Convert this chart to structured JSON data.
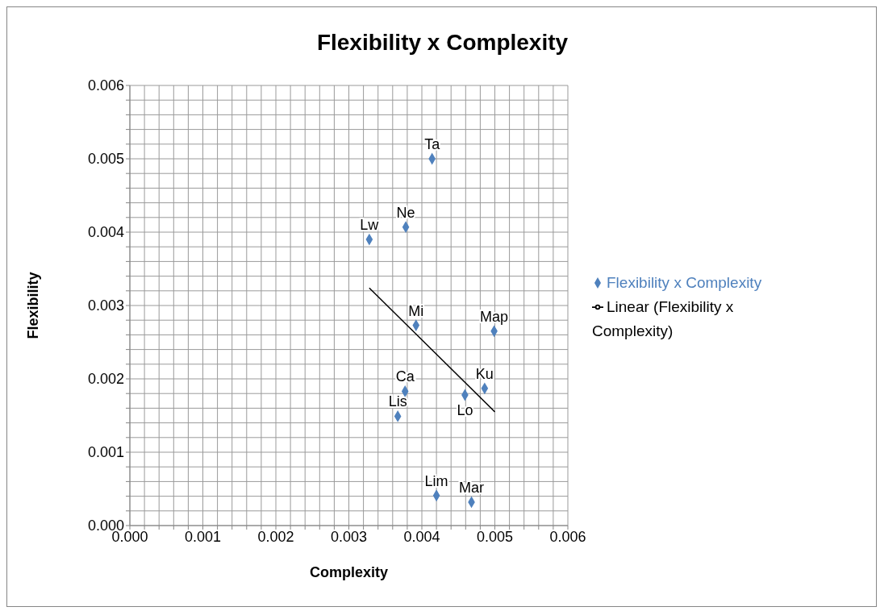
{
  "chart_data": {
    "type": "scatter",
    "title": "Flexibility x Complexity",
    "xlabel": "Complexity",
    "ylabel": "Flexibility",
    "series": [
      {
        "name": "Flexibility x Complexity",
        "color": "#4f81bd",
        "x": [
          0.00414,
          0.00378,
          0.00328,
          0.00392,
          0.00499,
          0.00377,
          0.00486,
          0.00459,
          0.00367,
          0.0042,
          0.00468
        ],
        "values": [
          0.005,
          0.00407,
          0.0039,
          0.00273,
          0.00265,
          0.00183,
          0.00187,
          0.00178,
          0.00149,
          0.00041,
          0.00032
        ],
        "marker": "diamond"
      },
      {
        "name": "Linear (Flexibility x Complexity)",
        "type": "line",
        "color": "#000000",
        "x": [
          0.00328,
          0.005
        ],
        "values": [
          0.00324,
          0.00155
        ],
        "marker": "none"
      }
    ],
    "annotations": [
      {
        "text": "Ta",
        "x": 0.00414,
        "y": 0.005
      },
      {
        "text": "Ne",
        "x": 0.00378,
        "y": 0.00407
      },
      {
        "text": "Lw",
        "x": 0.00328,
        "y": 0.0039
      },
      {
        "text": "Mi",
        "x": 0.00392,
        "y": 0.00273
      },
      {
        "text": "Map",
        "x": 0.00499,
        "y": 0.00265
      },
      {
        "text": "Ca",
        "x": 0.00377,
        "y": 0.00183
      },
      {
        "text": "Ku",
        "x": 0.00486,
        "y": 0.00187
      },
      {
        "text": "Lo",
        "x": 0.00459,
        "y": 0.00178
      },
      {
        "text": "Lis",
        "x": 0.00367,
        "y": 0.00149
      },
      {
        "text": "Lim",
        "x": 0.0042,
        "y": 0.00041
      },
      {
        "text": "Mar",
        "x": 0.00468,
        "y": 0.00032
      }
    ],
    "xlim": [
      0,
      0.006
    ],
    "ylim": [
      0,
      0.006
    ],
    "xticks": [
      {
        "value": 0,
        "label": "0.000"
      },
      {
        "value": 0.0002,
        "label": null
      },
      {
        "value": 0.0004,
        "label": null
      },
      {
        "value": 0.0006,
        "label": null
      },
      {
        "value": 0.0008,
        "label": null
      },
      {
        "value": 0.001,
        "label": "0.001"
      },
      {
        "value": 0.0012,
        "label": null
      },
      {
        "value": 0.0014,
        "label": null
      },
      {
        "value": 0.0016,
        "label": null
      },
      {
        "value": 0.0018,
        "label": null
      },
      {
        "value": 0.002,
        "label": "0.002"
      },
      {
        "value": 0.0022,
        "label": null
      },
      {
        "value": 0.0024,
        "label": null
      },
      {
        "value": 0.0026,
        "label": null
      },
      {
        "value": 0.0028,
        "label": null
      },
      {
        "value": 0.003,
        "label": "0.003"
      },
      {
        "value": 0.0032,
        "label": null
      },
      {
        "value": 0.0034,
        "label": null
      },
      {
        "value": 0.0036,
        "label": null
      },
      {
        "value": 0.0038,
        "label": null
      },
      {
        "value": 0.004,
        "label": "0.004"
      },
      {
        "value": 0.0042,
        "label": null
      },
      {
        "value": 0.0044,
        "label": null
      },
      {
        "value": 0.0046,
        "label": null
      },
      {
        "value": 0.0048,
        "label": null
      },
      {
        "value": 0.005,
        "label": "0.005"
      },
      {
        "value": 0.0052,
        "label": null
      },
      {
        "value": 0.0054,
        "label": null
      },
      {
        "value": 0.0056,
        "label": null
      },
      {
        "value": 0.0058,
        "label": null
      },
      {
        "value": 0.006,
        "label": "0.006"
      }
    ],
    "yticks": [
      {
        "value": 0,
        "label": "0.000"
      },
      {
        "value": 0.0002,
        "label": null
      },
      {
        "value": 0.0004,
        "label": null
      },
      {
        "value": 0.0006,
        "label": null
      },
      {
        "value": 0.0008,
        "label": null
      },
      {
        "value": 0.001,
        "label": "0.001"
      },
      {
        "value": 0.0012,
        "label": null
      },
      {
        "value": 0.0014,
        "label": null
      },
      {
        "value": 0.0016,
        "label": null
      },
      {
        "value": 0.0018,
        "label": null
      },
      {
        "value": 0.002,
        "label": "0.002"
      },
      {
        "value": 0.0022,
        "label": null
      },
      {
        "value": 0.0024,
        "label": null
      },
      {
        "value": 0.0026,
        "label": null
      },
      {
        "value": 0.0028,
        "label": null
      },
      {
        "value": 0.003,
        "label": "0.003"
      },
      {
        "value": 0.0032,
        "label": null
      },
      {
        "value": 0.0034,
        "label": null
      },
      {
        "value": 0.0036,
        "label": null
      },
      {
        "value": 0.0038,
        "label": null
      },
      {
        "value": 0.004,
        "label": "0.004"
      },
      {
        "value": 0.0042,
        "label": null
      },
      {
        "value": 0.0044,
        "label": null
      },
      {
        "value": 0.0046,
        "label": null
      },
      {
        "value": 0.0048,
        "label": null
      },
      {
        "value": 0.005,
        "label": "0.005"
      },
      {
        "value": 0.0052,
        "label": null
      },
      {
        "value": 0.0054,
        "label": null
      },
      {
        "value": 0.0056,
        "label": null
      },
      {
        "value": 0.0058,
        "label": null
      },
      {
        "value": 0.006,
        "label": "0.006"
      }
    ],
    "grid": true,
    "legend": "right"
  }
}
